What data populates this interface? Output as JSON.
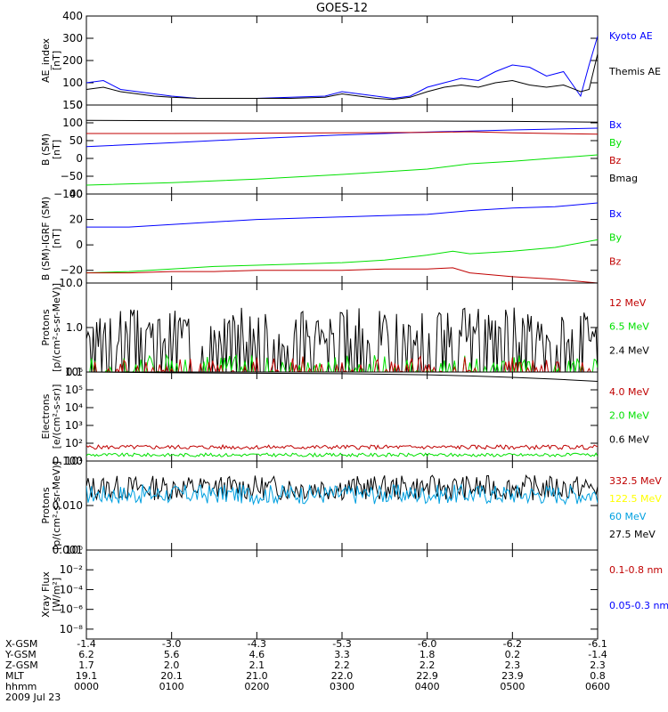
{
  "title": "GOES-12",
  "date_label": "2009 Jul 23",
  "x_time_ticks": [
    "0000",
    "0100",
    "0200",
    "0300",
    "0400",
    "0500",
    "0600"
  ],
  "orbit": {
    "rows": [
      {
        "label": "X-GSM",
        "values": [
          "-1.4",
          "-3.0",
          "-4.3",
          "-5.3",
          "-6.0",
          "-6.2",
          "-6.1"
        ]
      },
      {
        "label": "Y-GSM",
        "values": [
          "6.2",
          "5.6",
          "4.6",
          "3.3",
          "1.8",
          "0.2",
          "-1.4"
        ]
      },
      {
        "label": "Z-GSM",
        "values": [
          "1.7",
          "2.0",
          "2.1",
          "2.2",
          "2.2",
          "2.3",
          "2.3"
        ]
      },
      {
        "label": "MLT",
        "values": [
          "19.1",
          "20.1",
          "21.0",
          "22.0",
          "22.9",
          "23.9",
          "0.8"
        ]
      },
      {
        "label": "hhmm",
        "values": [
          "0000",
          "0100",
          "0200",
          "0300",
          "0400",
          "0500",
          "0600"
        ]
      }
    ]
  },
  "colors": {
    "black": "#000000",
    "blue": "#0000ff",
    "green": "#00e000",
    "red": "#c00000",
    "yellow": "#ffff00",
    "cyan": "#00a0e0"
  },
  "chart_data": [
    {
      "type": "line",
      "ylabel": "AE_index",
      "yunits": "[nT]",
      "ylim": [
        0,
        400
      ],
      "yticks": [
        "0",
        "100",
        "200",
        "300",
        "400"
      ],
      "log": false,
      "xlim": [
        0,
        6
      ],
      "series": [
        {
          "name": "Kyoto AE",
          "color": "#0000ff",
          "x": [
            0,
            0.2,
            0.4,
            0.6,
            0.8,
            1.0,
            1.3,
            1.6,
            2.0,
            2.4,
            2.8,
            3.0,
            3.2,
            3.4,
            3.6,
            3.8,
            4.0,
            4.2,
            4.4,
            4.6,
            4.8,
            5.0,
            5.2,
            5.4,
            5.6,
            5.8,
            5.9,
            6.0
          ],
          "y": [
            100,
            110,
            70,
            60,
            50,
            40,
            30,
            30,
            30,
            35,
            40,
            60,
            50,
            40,
            30,
            40,
            80,
            100,
            120,
            110,
            150,
            180,
            170,
            130,
            150,
            40,
            180,
            310
          ]
        },
        {
          "name": "Themis AE",
          "color": "#000000",
          "x": [
            0,
            0.2,
            0.4,
            0.6,
            0.8,
            1.0,
            1.3,
            1.6,
            2.0,
            2.4,
            2.8,
            3.0,
            3.2,
            3.4,
            3.6,
            3.8,
            4.0,
            4.2,
            4.4,
            4.6,
            4.8,
            5.0,
            5.2,
            5.4,
            5.6,
            5.8,
            5.9,
            6.0
          ],
          "y": [
            70,
            80,
            60,
            50,
            40,
            35,
            30,
            30,
            30,
            30,
            35,
            50,
            40,
            30,
            25,
            35,
            60,
            80,
            90,
            80,
            100,
            110,
            90,
            80,
            90,
            60,
            70,
            230
          ]
        }
      ],
      "legend": [
        {
          "label": "Kyoto AE",
          "color": "#0000ff"
        },
        {
          "label": "Themis AE",
          "color": "#000000"
        }
      ]
    },
    {
      "type": "line",
      "ylabel": "B (SM)",
      "yunits": "[nT]",
      "ylim": [
        -100,
        150
      ],
      "yticks": [
        "−100",
        "−50",
        "0",
        "50",
        "100",
        "150"
      ],
      "log": false,
      "xlim": [
        0,
        6
      ],
      "series": [
        {
          "name": "Bx",
          "color": "#0000ff",
          "x": [
            0,
            1,
            2,
            3,
            4,
            5,
            6
          ],
          "y": [
            33,
            44,
            56,
            66,
            74,
            80,
            85
          ]
        },
        {
          "name": "By",
          "color": "#00e000",
          "x": [
            0,
            1,
            2,
            3,
            4,
            4.5,
            5,
            6
          ],
          "y": [
            -75,
            -68,
            -58,
            -45,
            -30,
            -15,
            -8,
            10
          ]
        },
        {
          "name": "Bz",
          "color": "#c00000",
          "x": [
            0,
            1,
            2,
            3,
            4,
            4.5,
            5,
            6
          ],
          "y": [
            70,
            70,
            71,
            72,
            73,
            75,
            72,
            68
          ]
        },
        {
          "name": "Bmag",
          "color": "#000000",
          "x": [
            0,
            1,
            2,
            3,
            4,
            5,
            6
          ],
          "y": [
            107,
            106,
            105,
            105,
            105,
            104,
            102
          ]
        }
      ],
      "legend": [
        {
          "label": "Bx",
          "color": "#0000ff"
        },
        {
          "label": "By",
          "color": "#00e000"
        },
        {
          "label": "Bz",
          "color": "#c00000"
        },
        {
          "label": "Bmag",
          "color": "#000000"
        }
      ]
    },
    {
      "type": "line",
      "ylabel": "B (SM)-IGRF (SM)",
      "yunits": "[nT]",
      "ylim": [
        -30,
        40
      ],
      "yticks": [
        "−20",
        "0",
        "20",
        "40"
      ],
      "log": false,
      "xlim": [
        0,
        6
      ],
      "series": [
        {
          "name": "Bx",
          "color": "#0000ff",
          "x": [
            0,
            0.5,
            1,
            1.5,
            2,
            2.5,
            3,
            3.5,
            4,
            4.5,
            5,
            5.5,
            6
          ],
          "y": [
            14,
            14,
            16,
            18,
            20,
            21,
            22,
            23,
            24,
            27,
            29,
            30,
            33
          ]
        },
        {
          "name": "By",
          "color": "#00e000",
          "x": [
            0,
            0.5,
            1,
            1.5,
            2,
            2.5,
            3,
            3.5,
            4,
            4.3,
            4.5,
            5,
            5.5,
            6
          ],
          "y": [
            -22,
            -21,
            -19,
            -17,
            -16,
            -15,
            -14,
            -12,
            -8,
            -5,
            -7,
            -5,
            -2,
            4
          ]
        },
        {
          "name": "Bz",
          "color": "#c00000",
          "x": [
            0,
            0.5,
            1,
            1.5,
            2,
            2.5,
            3,
            3.5,
            4,
            4.3,
            4.5,
            5,
            5.5,
            6
          ],
          "y": [
            -22,
            -22,
            -21,
            -21,
            -20,
            -20,
            -20,
            -19,
            -19,
            -18,
            -22,
            -25,
            -27,
            -30
          ]
        }
      ],
      "legend": [
        {
          "label": "Bx",
          "color": "#0000ff"
        },
        {
          "label": "By",
          "color": "#00e000"
        },
        {
          "label": "Bz",
          "color": "#c00000"
        }
      ]
    },
    {
      "type": "line",
      "ylabel": "Protons",
      "yunits": "[p/(cm²-s-sr-MeV)]",
      "ylim": [
        0.1,
        10
      ],
      "yticks": [
        "0.1",
        "1.0",
        "10.0"
      ],
      "log": true,
      "xlim": [
        0,
        6
      ],
      "noisy": true,
      "series": [
        {
          "name": "2.4 MeV",
          "color": "#000000",
          "level": 1.0,
          "spread": 0.45,
          "floor": 0.1,
          "seed": 3
        },
        {
          "name": "6.5 MeV",
          "color": "#00e000",
          "level": 0.12,
          "spread": 0.3,
          "floor": 0.1,
          "seed": 7
        },
        {
          "name": "12 MeV",
          "color": "#c00000",
          "level": 0.09,
          "spread": 0.4,
          "floor": 0.1,
          "seed": 11
        }
      ],
      "legend": [
        {
          "label": "12 MeV",
          "color": "#c00000"
        },
        {
          "label": "6.5 MeV",
          "color": "#00e000"
        },
        {
          "label": "2.4 MeV",
          "color": "#000000"
        }
      ]
    },
    {
      "type": "line",
      "ylabel": "Electrons",
      "yunits": "[e/(cm²-s-sr)]",
      "ylim": [
        10,
        1000000
      ],
      "yticks": [
        "10¹",
        "10²",
        "10³",
        "10⁴",
        "10⁵",
        "10⁶"
      ],
      "log": true,
      "xlim": [
        0,
        6
      ],
      "series": [
        {
          "name": "0.6 MeV",
          "color": "#000000",
          "x": [
            0,
            1,
            2,
            3,
            4,
            4.5,
            5,
            5.5,
            6
          ],
          "y": [
            1000000,
            900000,
            850000,
            800000,
            700000,
            600000,
            500000,
            400000,
            300000
          ]
        },
        {
          "name": "4.0 MeV",
          "color": "#c00000",
          "level": 60,
          "spread": 0.12,
          "seed": 5,
          "noisy_series": true
        },
        {
          "name": "2.0 MeV",
          "color": "#00e000",
          "level": 22,
          "spread": 0.1,
          "seed": 9,
          "noisy_series": true
        }
      ],
      "legend": [
        {
          "label": "4.0 MeV",
          "color": "#c00000"
        },
        {
          "label": "2.0 MeV",
          "color": "#00e000"
        },
        {
          "label": "0.6 MeV",
          "color": "#000000"
        }
      ]
    },
    {
      "type": "line",
      "ylabel": "Protons",
      "yunits": "[p/(cm²-s-sr-MeV)]",
      "ylim": [
        0.001,
        0.1
      ],
      "yticks": [
        "0.001",
        "0.010",
        "0.100"
      ],
      "log": true,
      "xlim": [
        0,
        6
      ],
      "series": [
        {
          "name": "27.5 MeV",
          "color": "#000000",
          "level": 0.025,
          "spread": 0.28,
          "seed": 13,
          "noisy_series": true
        },
        {
          "name": "60 MeV",
          "color": "#00a0e0",
          "level": 0.018,
          "spread": 0.22,
          "seed": 17,
          "noisy_series": true
        }
      ],
      "legend": [
        {
          "label": "332.5 MeV",
          "color": "#c00000"
        },
        {
          "label": "122.5 MeV",
          "color": "#ffff00"
        },
        {
          "label": "60 MeV",
          "color": "#00a0e0"
        },
        {
          "label": "27.5 MeV",
          "color": "#000000"
        }
      ]
    },
    {
      "type": "line",
      "ylabel": "Xray Flux",
      "yunits": "[W/m²]",
      "ylim": [
        1e-09,
        1
      ],
      "yticks": [
        "10⁻⁸",
        "10⁻⁶",
        "10⁻⁴",
        "10⁻²",
        "10⁰"
      ],
      "log": true,
      "xlim": [
        0,
        6
      ],
      "series": [],
      "legend": [
        {
          "label": "0.1-0.8 nm",
          "color": "#c00000"
        },
        {
          "label": "0.05-0.3 nm",
          "color": "#0000ff"
        }
      ]
    }
  ]
}
